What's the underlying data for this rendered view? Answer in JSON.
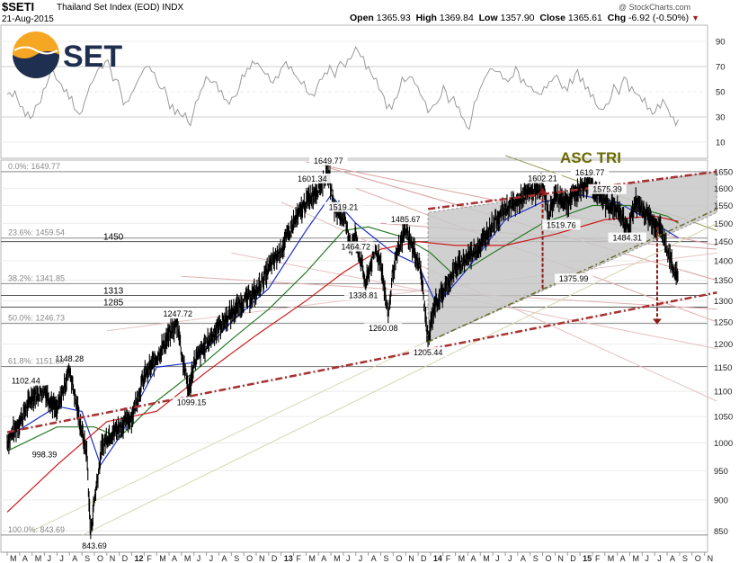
{
  "header": {
    "ticker": "$SETI",
    "name": "Thailand Set Index (EOD)",
    "exchange": "INDX",
    "date": "21-Aug-2015",
    "copyright": "@ StockCharts.com",
    "open_label": "Open",
    "open": "1365.93",
    "high_label": "High",
    "high": "1369.84",
    "low_label": "Low",
    "low": "1357.90",
    "close_label": "Close",
    "close": "1365.61",
    "chg_label": "Chg",
    "chg": "-6.92 (-0.50%)",
    "chg_arrow": "▼"
  },
  "logo": {
    "text": "SET",
    "colors": {
      "orange": "#f5a623",
      "navy": "#1f2f4f"
    }
  },
  "rsi_panel": {
    "ticks": [
      90,
      70,
      50,
      30,
      10
    ],
    "values": [
      48,
      46,
      44,
      38,
      34,
      31,
      40,
      52,
      60,
      66,
      58,
      50,
      44,
      36,
      32,
      42,
      55,
      62,
      70,
      74,
      68,
      60,
      50,
      42,
      48,
      56,
      64,
      70,
      66,
      58,
      52,
      46,
      40,
      36,
      30,
      26,
      32,
      44,
      54,
      60,
      58,
      50,
      44,
      40,
      46,
      54,
      62,
      68,
      72,
      70,
      64,
      58,
      62,
      68,
      74,
      70,
      62,
      56,
      50,
      48,
      54,
      60,
      64,
      66,
      70,
      72,
      76,
      80,
      82,
      78,
      70,
      60,
      52,
      46,
      40,
      44,
      52,
      58,
      62,
      56,
      48,
      42,
      36,
      40,
      46,
      50,
      44,
      38,
      30,
      22,
      30,
      44,
      56,
      64,
      68,
      66,
      60,
      58,
      62,
      66,
      60,
      54,
      50,
      48,
      54,
      58,
      62,
      58,
      54,
      60,
      64,
      58,
      52,
      46,
      40,
      36,
      40,
      46,
      52,
      56,
      60,
      54,
      48,
      42,
      36,
      32,
      40,
      44,
      36,
      30,
      28
    ]
  },
  "price_labels": [
    {
      "text": "1649.77"
    },
    {
      "text": "1601.34"
    },
    {
      "text": "1519.21"
    },
    {
      "text": "1485.67"
    },
    {
      "text": "1464.72"
    },
    {
      "text": "1338.81"
    },
    {
      "text": "1260.08"
    },
    {
      "text": "1247.72"
    },
    {
      "text": "1099.15"
    },
    {
      "text": "1148.28"
    },
    {
      "text": "1102.44"
    },
    {
      "text": "998.39"
    },
    {
      "text": "843.69"
    },
    {
      "text": "1205.44"
    },
    {
      "text": "1602.21"
    },
    {
      "text": "1619.77"
    },
    {
      "text": "1575.39"
    },
    {
      "text": "1519.76"
    },
    {
      "text": "1484.31"
    },
    {
      "text": "1375.99"
    }
  ],
  "fib_levels": [
    {
      "label": "0.0%: 1649.77",
      "value": 1649.77
    },
    {
      "label": "23.6%: 1459.54",
      "value": 1459.54
    },
    {
      "label": "38.2%: 1341.85",
      "value": 1341.85
    },
    {
      "label": "50.0%: 1246.73",
      "value": 1246.73
    },
    {
      "label": "61.8%: 1151.60",
      "value": 1151.6
    },
    {
      "label": "100.0%: 843.69",
      "value": 843.69
    }
  ],
  "level_labels": [
    {
      "text": "1450",
      "value": 1450
    },
    {
      "text": "1313",
      "value": 1313
    },
    {
      "text": "1285",
      "value": 1285
    }
  ],
  "annotation": {
    "text": "ASC TRI",
    "color": "#6b6b00"
  },
  "chart_data": {
    "type": "line",
    "title": "",
    "ylim": [
      820,
      1680
    ],
    "y_ticks": [
      850,
      900,
      950,
      1000,
      1050,
      1100,
      1150,
      1200,
      1250,
      1300,
      1350,
      1400,
      1450,
      1500,
      1550,
      1600,
      1650
    ],
    "x_ticks": [
      "M",
      "A",
      "M",
      "J",
      "J",
      "A",
      "S",
      "O",
      "N",
      "D",
      "12",
      "F",
      "M",
      "A",
      "M",
      "J",
      "J",
      "A",
      "S",
      "O",
      "N",
      "D",
      "13",
      "F",
      "M",
      "A",
      "M",
      "J",
      "J",
      "A",
      "S",
      "O",
      "N",
      "D",
      "14",
      "F",
      "M",
      "A",
      "M",
      "J",
      "J",
      "A",
      "S",
      "O",
      "N",
      "D",
      "15",
      "F",
      "M",
      "A",
      "M",
      "J",
      "J",
      "A",
      "S",
      "O",
      "N"
    ],
    "anchors": [
      [
        0,
        1002
      ],
      [
        1,
        1040
      ],
      [
        2,
        1090
      ],
      [
        3,
        1102
      ],
      [
        4,
        1060
      ],
      [
        5,
        1148
      ],
      [
        6,
        1020
      ],
      [
        6.4,
        980
      ],
      [
        6.7,
        843.69
      ],
      [
        7,
        900
      ],
      [
        7.6,
        990
      ],
      [
        8,
        1010
      ],
      [
        9,
        1030
      ],
      [
        10,
        1050
      ],
      [
        11,
        1130
      ],
      [
        12,
        1170
      ],
      [
        13,
        1220
      ],
      [
        13.7,
        1247.72
      ],
      [
        14,
        1180
      ],
      [
        14.6,
        1099.15
      ],
      [
        15,
        1160
      ],
      [
        16,
        1200
      ],
      [
        17,
        1240
      ],
      [
        18,
        1270
      ],
      [
        19,
        1300
      ],
      [
        20,
        1320
      ],
      [
        21,
        1380
      ],
      [
        22,
        1430
      ],
      [
        23,
        1500
      ],
      [
        24,
        1560
      ],
      [
        25,
        1601.34
      ],
      [
        25.8,
        1649.77
      ],
      [
        26.3,
        1540
      ],
      [
        27,
        1519.21
      ],
      [
        27.6,
        1440
      ],
      [
        28,
        1464.72
      ],
      [
        28.8,
        1338.81
      ],
      [
        29.5,
        1430
      ],
      [
        30,
        1400
      ],
      [
        30.6,
        1260.08
      ],
      [
        31,
        1380
      ],
      [
        32,
        1485.67
      ],
      [
        32.6,
        1430
      ],
      [
        33.2,
        1380
      ],
      [
        33.8,
        1205.44
      ],
      [
        34.3,
        1290
      ],
      [
        35,
        1320
      ],
      [
        36,
        1380
      ],
      [
        37,
        1410
      ],
      [
        38,
        1440
      ],
      [
        39,
        1500
      ],
      [
        40,
        1540
      ],
      [
        41,
        1560
      ],
      [
        42,
        1590
      ],
      [
        43,
        1602.21
      ],
      [
        43.5,
        1519.76
      ],
      [
        44,
        1580
      ],
      [
        45,
        1560
      ],
      [
        46,
        1600
      ],
      [
        46.8,
        1619.77
      ],
      [
        47.5,
        1575.39
      ],
      [
        48,
        1560
      ],
      [
        49,
        1540
      ],
      [
        49.8,
        1484.31
      ],
      [
        50.5,
        1560
      ],
      [
        51,
        1540
      ],
      [
        52,
        1500
      ],
      [
        52.5,
        1484.31
      ],
      [
        53,
        1430
      ],
      [
        53.5,
        1375.99
      ],
      [
        53.9,
        1365.61
      ]
    ],
    "moving_averages": [
      {
        "color": "#1a2ecc",
        "points": [
          [
            0,
            1010
          ],
          [
            4,
            1070
          ],
          [
            6,
            1060
          ],
          [
            7.5,
            960
          ],
          [
            9,
            1010
          ],
          [
            12,
            1150
          ],
          [
            15,
            1160
          ],
          [
            18,
            1250
          ],
          [
            21,
            1330
          ],
          [
            24,
            1480
          ],
          [
            26,
            1580
          ],
          [
            28,
            1500
          ],
          [
            31,
            1420
          ],
          [
            33,
            1390
          ],
          [
            34.5,
            1290
          ],
          [
            37,
            1380
          ],
          [
            40,
            1510
          ],
          [
            43,
            1560
          ],
          [
            46,
            1580
          ],
          [
            49,
            1560
          ],
          [
            52,
            1500
          ],
          [
            53.9,
            1460
          ]
        ]
      },
      {
        "color": "#2a7a2a",
        "points": [
          [
            0,
            985
          ],
          [
            4,
            1030
          ],
          [
            7,
            1030
          ],
          [
            9,
            1010
          ],
          [
            12,
            1080
          ],
          [
            15,
            1140
          ],
          [
            18,
            1210
          ],
          [
            21,
            1280
          ],
          [
            24,
            1370
          ],
          [
            27,
            1480
          ],
          [
            29,
            1490
          ],
          [
            32,
            1460
          ],
          [
            34,
            1420
          ],
          [
            36,
            1360
          ],
          [
            39,
            1420
          ],
          [
            43,
            1500
          ],
          [
            47,
            1550
          ],
          [
            50,
            1550
          ],
          [
            53,
            1520
          ],
          [
            53.9,
            1500
          ]
        ]
      },
      {
        "color": "#cc1a1a",
        "points": [
          [
            0,
            880
          ],
          [
            4,
            960
          ],
          [
            8,
            1040
          ],
          [
            12,
            1060
          ],
          [
            16,
            1140
          ],
          [
            20,
            1220
          ],
          [
            24,
            1300
          ],
          [
            27,
            1370
          ],
          [
            30,
            1430
          ],
          [
            33,
            1450
          ],
          [
            36,
            1440
          ],
          [
            40,
            1440
          ],
          [
            44,
            1470
          ],
          [
            48,
            1510
          ],
          [
            52,
            1520
          ],
          [
            53.9,
            1505
          ]
        ]
      }
    ],
    "triangle": {
      "apex_top": [
        [
          33.8,
          1530
        ],
        [
          57,
          1650
        ]
      ],
      "apex_bottom": [
        [
          33.8,
          1205
        ],
        [
          57,
          1530
        ]
      ]
    },
    "trendlines": [
      {
        "color": "#a83030",
        "width": 2.5,
        "dash": "8,3,2,3",
        "pts": [
          [
            0,
            1020
          ],
          [
            57,
            1320
          ]
        ]
      },
      {
        "color": "#a83030",
        "width": 2.5,
        "dash": "8,3,2,3",
        "pts": [
          [
            33.8,
            1540
          ],
          [
            57,
            1650
          ]
        ]
      },
      {
        "color": "#6b6b2a",
        "width": 1.5,
        "dash": "6,3,2,3",
        "pts": [
          [
            33.8,
            1205
          ],
          [
            57,
            1540
          ]
        ]
      }
    ]
  }
}
